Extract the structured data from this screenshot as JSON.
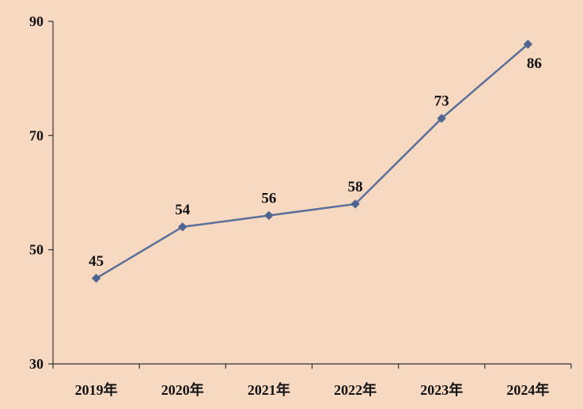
{
  "chart_data": {
    "type": "line",
    "categories": [
      "2019年",
      "2020年",
      "2021年",
      "2022年",
      "2023年",
      "2024年"
    ],
    "series": [
      {
        "values": [
          45,
          54,
          56,
          58,
          73,
          86
        ]
      }
    ],
    "data_labels": [
      "45",
      "54",
      "56",
      "58",
      "73",
      "86"
    ],
    "title": "",
    "xlabel": "",
    "ylabel": "",
    "ylim": [
      30,
      90
    ],
    "yticks": [
      30,
      50,
      70,
      90
    ],
    "ytick_labels": [
      "30",
      "50",
      "70",
      "90"
    ],
    "grid": false,
    "legend": "none",
    "colors": {
      "background": "#f7d9c2",
      "line": "#5a6f98",
      "marker": "#4f6491",
      "axis": "#333333"
    }
  }
}
